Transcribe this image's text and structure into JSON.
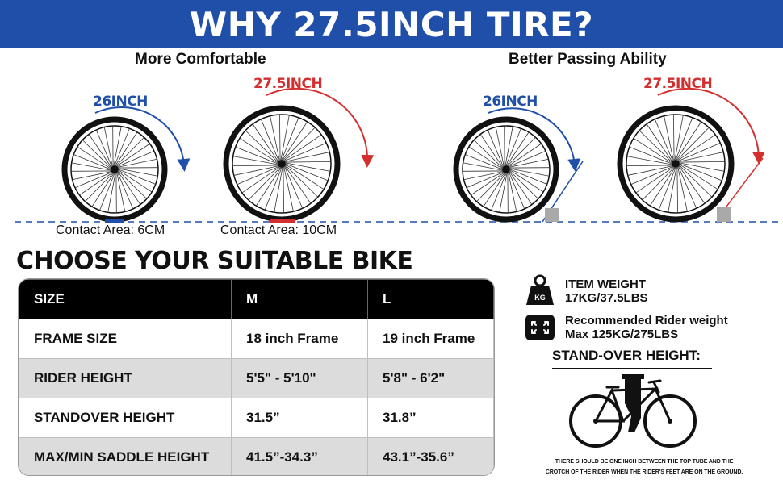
{
  "banner": {
    "title": "WHY 27.5INCH TIRE?"
  },
  "comfort": {
    "title": "More Comfortable",
    "wheel_small_label": "26INCH",
    "wheel_large_label": "27.5INCH",
    "contact_small": "Contact Area: 6CM",
    "contact_large": "Contact Area: 10CM"
  },
  "passing": {
    "title": "Better Passing Ability",
    "wheel_small_label": "26INCH",
    "wheel_large_label": "27.5INCH"
  },
  "choose": {
    "heading": "CHOOSE YOUR SUITABLE BIKE"
  },
  "size_table": {
    "headers": [
      "SIZE",
      "M",
      "L"
    ],
    "rows": [
      [
        "FRAME SIZE",
        "18 inch Frame",
        "19 inch Frame"
      ],
      [
        "RIDER HEIGHT",
        "5'5\" - 5'10\"",
        "5'8\" - 6'2\""
      ],
      [
        "STANDOVER HEIGHT",
        "31.5”",
        "31.8”"
      ],
      [
        "MAX/MIN SADDLE HEIGHT",
        "41.5”-34.3”",
        "43.1”-35.6”"
      ]
    ]
  },
  "specs": {
    "weight_icon_text": "KG",
    "weight_label": "ITEM WEIGHT",
    "weight_value": "17KG/37.5LBS",
    "rider_label": "Recommended Rider weight",
    "rider_value": "Max 125KG/275LBS"
  },
  "standover": {
    "title": "STAND-OVER HEIGHT:",
    "note_line1": "THERE SHOULD BE ONE INCH BETWEEN THE TOP TUBE AND THE",
    "note_line2": "CROTCH OF THE RIDER WHEN THE RIDER'S FEET ARE ON THE GROUND."
  },
  "colors": {
    "brand_blue": "#1f4fa8",
    "accent_red": "#d42f2f",
    "table_gray": "#dcdcdc"
  },
  "icons": [
    "weight-kg-icon",
    "expand-arrows-icon",
    "bicycle-illustration",
    "wheel-illustration"
  ]
}
